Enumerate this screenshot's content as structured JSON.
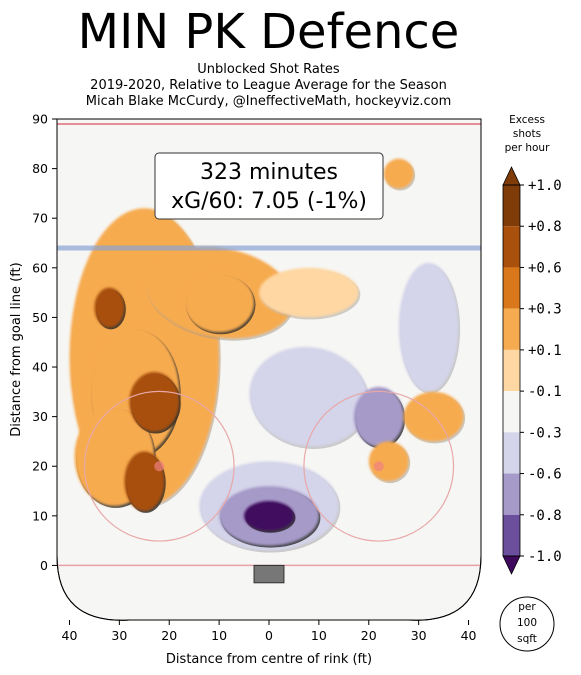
{
  "title": "MIN PK Defence",
  "subtitle_lines": [
    "Unblocked Shot Rates",
    "2019-2020, Relative to League Average for the Season",
    "Micah Blake McCurdy, @IneffectiveMath, hockeyviz.com"
  ],
  "annotation": {
    "line1": "323 minutes",
    "line2": "xG/60: 7.05 (-1%)"
  },
  "colorbar": {
    "title_lines": [
      "Excess",
      "shots",
      "per hour"
    ],
    "labels": [
      "-1.0",
      "-0.8",
      "-0.6",
      "-0.3",
      "-0.1",
      "+0.1",
      "+0.3",
      "+0.6",
      "+0.8",
      "+1.0"
    ],
    "colors": [
      "#3f0a5e",
      "#6b4f9c",
      "#a69ac8",
      "#d4d4ea",
      "#f6f6f4",
      "#fed7a3",
      "#f7ab50",
      "#d9781a",
      "#a8500c",
      "#7f3b08"
    ],
    "unit_lines": [
      "per",
      "100",
      "sqft"
    ]
  },
  "chart_data": {
    "type": "heatmap",
    "xlabel": "Distance from centre of rink (ft)",
    "ylabel": "Distance from goal line (ft)",
    "xlim": [
      42.5,
      -42.5
    ],
    "ylim": [
      -11,
      90
    ],
    "xticks": [
      40,
      30,
      20,
      10,
      0,
      10,
      20,
      30,
      40
    ],
    "yticks": [
      0,
      10,
      20,
      30,
      40,
      50,
      60,
      70,
      80,
      90
    ],
    "lines": {
      "blue_line_y": 64,
      "far_line_y": 89,
      "goal_line_y": 0
    },
    "faceoff_circles": [
      {
        "x": 22,
        "y": 20,
        "r": 15
      },
      {
        "x": -22,
        "y": 20,
        "r": 15
      }
    ],
    "regions": [
      {
        "level": 0.4,
        "x": 25,
        "y": 42,
        "rx": 15,
        "ry": 30,
        "rot": 0
      },
      {
        "level": 0.4,
        "x": 10,
        "y": 55,
        "rx": 15,
        "ry": 9,
        "rot": 10
      },
      {
        "level": 0.2,
        "x": -8,
        "y": 55,
        "rx": 10,
        "ry": 5,
        "rot": 0
      },
      {
        "level": -0.2,
        "x": -8,
        "y": 34,
        "rx": 12,
        "ry": 10,
        "rot": 10
      },
      {
        "level": -0.2,
        "x": -32,
        "y": 48,
        "rx": 6,
        "ry": 13,
        "rot": 0
      },
      {
        "level": -0.2,
        "x": 0,
        "y": 12,
        "rx": 14,
        "ry": 9,
        "rot": 0
      },
      {
        "level": 0.6,
        "x": 27,
        "y": 35,
        "rx": 9,
        "ry": 13,
        "rot": 0
      },
      {
        "level": 0.6,
        "x": 10,
        "y": 53,
        "rx": 7,
        "ry": 6,
        "rot": 0
      },
      {
        "level": 0.6,
        "x": 31,
        "y": 22,
        "rx": 8,
        "ry": 10,
        "rot": 0
      },
      {
        "level": -0.5,
        "x": 0,
        "y": 10,
        "rx": 10,
        "ry": 6,
        "rot": 0
      },
      {
        "level": -0.5,
        "x": -22,
        "y": 30,
        "rx": 5,
        "ry": 6,
        "rot": 0
      },
      {
        "level": 0.9,
        "x": 23,
        "y": 33,
        "rx": 5,
        "ry": 6,
        "rot": 0
      },
      {
        "level": 0.9,
        "x": 25,
        "y": 17,
        "rx": 4,
        "ry": 6,
        "rot": 0
      },
      {
        "level": 0.9,
        "x": 32,
        "y": 52,
        "rx": 3,
        "ry": 4,
        "rot": 0
      },
      {
        "level": -0.9,
        "x": 0,
        "y": 10,
        "rx": 5,
        "ry": 3,
        "rot": 0
      },
      {
        "level": 0.4,
        "x": -33,
        "y": 30,
        "rx": 6,
        "ry": 5,
        "rot": 0
      },
      {
        "level": 0.4,
        "x": -24,
        "y": 21,
        "rx": 4,
        "ry": 4,
        "rot": 0
      },
      {
        "level": 0.4,
        "x": -26,
        "y": 79,
        "rx": 3,
        "ry": 3,
        "rot": 0
      }
    ]
  }
}
